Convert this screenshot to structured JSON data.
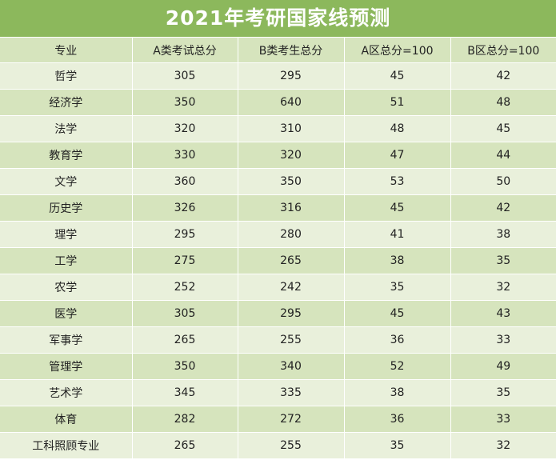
{
  "title": "2021年考研国家线预测",
  "table": {
    "headers": [
      "专业",
      "A类考试总分",
      "B类考生总分",
      "A区总分=100",
      "B区总分=100"
    ],
    "rows": [
      [
        "哲学",
        "305",
        "295",
        "45",
        "42"
      ],
      [
        "经济学",
        "350",
        "640",
        "51",
        "48"
      ],
      [
        "法学",
        "320",
        "310",
        "48",
        "45"
      ],
      [
        "教育学",
        "330",
        "320",
        "47",
        "44"
      ],
      [
        "文学",
        "360",
        "350",
        "53",
        "50"
      ],
      [
        "历史学",
        "326",
        "316",
        "45",
        "42"
      ],
      [
        "理学",
        "295",
        "280",
        "41",
        "38"
      ],
      [
        "工学",
        "275",
        "265",
        "38",
        "35"
      ],
      [
        "农学",
        "252",
        "242",
        "35",
        "32"
      ],
      [
        "医学",
        "305",
        "295",
        "45",
        "43"
      ],
      [
        "军事学",
        "265",
        "255",
        "36",
        "33"
      ],
      [
        "管理学",
        "350",
        "340",
        "52",
        "49"
      ],
      [
        "艺术学",
        "345",
        "335",
        "38",
        "35"
      ],
      [
        "体育",
        "282",
        "272",
        "36",
        "33"
      ],
      [
        "工科照顾专业",
        "265",
        "255",
        "35",
        "32"
      ]
    ]
  },
  "colors": {
    "title_bg": "#8cb85c",
    "row_light": "#e9f0db",
    "row_dark": "#d6e4bd"
  }
}
